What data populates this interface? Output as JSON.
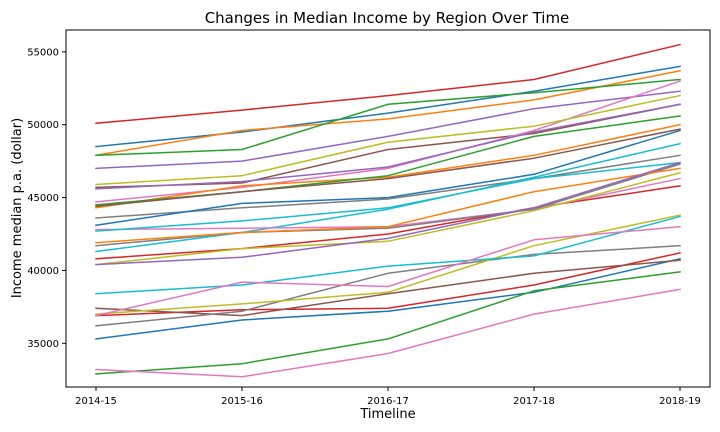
{
  "chart_data": {
    "type": "line",
    "title": "Changes in Median Income by Region Over Time",
    "xlabel": "Timeline",
    "ylabel": "Income median p.a. (dollar)",
    "categories": [
      "2014-15",
      "2015-16",
      "2016-17",
      "2017-18",
      "2018-19"
    ],
    "ylim": [
      32000,
      56500
    ],
    "yticks": [
      35000,
      40000,
      45000,
      50000,
      55000
    ],
    "ytick_labels": [
      "35000",
      "40000",
      "45000",
      "50000",
      "55000"
    ],
    "grid": false,
    "legend": "none",
    "series": [
      {
        "values": [
          48500,
          49500,
          50800,
          52300,
          54000
        ],
        "color": "#1f77b4"
      },
      {
        "values": [
          47900,
          49600,
          50400,
          51700,
          53700
        ],
        "color": "#ff7f0e"
      },
      {
        "values": [
          47900,
          48300,
          51400,
          52200,
          53100
        ],
        "color": "#2ca02c"
      },
      {
        "values": [
          50100,
          51000,
          52000,
          53100,
          55500
        ],
        "color": "#d62728"
      },
      {
        "values": [
          47000,
          47500,
          49200,
          51100,
          52300
        ],
        "color": "#9467bd"
      },
      {
        "values": [
          45700,
          46000,
          48300,
          49400,
          51400
        ],
        "color": "#8c564b"
      },
      {
        "values": [
          44700,
          45700,
          47000,
          49600,
          53000
        ],
        "color": "#e377c2"
      },
      {
        "values": [
          43600,
          44300,
          44900,
          46300,
          47900
        ],
        "color": "#7f7f7f"
      },
      {
        "values": [
          45900,
          46500,
          48800,
          49900,
          52000
        ],
        "color": "#bcbd22"
      },
      {
        "values": [
          41300,
          42600,
          44200,
          46400,
          48700
        ],
        "color": "#17becf"
      },
      {
        "values": [
          43100,
          44600,
          45000,
          46600,
          49600
        ],
        "color": "#1f77b4"
      },
      {
        "values": [
          44300,
          45800,
          46400,
          47900,
          50000
        ],
        "color": "#ff7f0e"
      },
      {
        "values": [
          44500,
          45400,
          46500,
          49200,
          50600
        ],
        "color": "#2ca02c"
      },
      {
        "values": [
          40800,
          41500,
          42500,
          44300,
          45800
        ],
        "color": "#d62728"
      },
      {
        "values": [
          45600,
          46100,
          47100,
          49500,
          51400
        ],
        "color": "#9467bd"
      },
      {
        "values": [
          44400,
          45400,
          46300,
          47700,
          49700
        ],
        "color": "#8c564b"
      },
      {
        "values": [
          42800,
          42900,
          43000,
          44200,
          46300
        ],
        "color": "#e377c2"
      },
      {
        "values": [
          41700,
          42600,
          42900,
          44200,
          47300
        ],
        "color": "#7f7f7f"
      },
      {
        "values": [
          40400,
          41500,
          42000,
          44100,
          46700
        ],
        "color": "#bcbd22"
      },
      {
        "values": [
          42700,
          43400,
          44300,
          46300,
          47400
        ],
        "color": "#17becf"
      },
      {
        "values": [
          35300,
          36600,
          37200,
          38500,
          40800
        ],
        "color": "#1f77b4"
      },
      {
        "values": [
          41900,
          42600,
          43000,
          45400,
          47000
        ],
        "color": "#ff7f0e"
      },
      {
        "values": [
          32900,
          33600,
          35300,
          38600,
          39900
        ],
        "color": "#2ca02c"
      },
      {
        "values": [
          36900,
          37300,
          37400,
          39000,
          41200
        ],
        "color": "#d62728"
      },
      {
        "values": [
          40400,
          40900,
          42200,
          44300,
          47400
        ],
        "color": "#9467bd"
      },
      {
        "values": [
          37400,
          36900,
          38400,
          39800,
          40700
        ],
        "color": "#8c564b"
      },
      {
        "values": [
          33200,
          32700,
          34300,
          37000,
          38700
        ],
        "color": "#e377c2"
      },
      {
        "values": [
          36200,
          37200,
          39800,
          41100,
          41700
        ],
        "color": "#7f7f7f"
      },
      {
        "values": [
          37000,
          37700,
          38500,
          41700,
          43800
        ],
        "color": "#bcbd22"
      },
      {
        "values": [
          38400,
          39000,
          40300,
          41000,
          43700
        ],
        "color": "#17becf"
      },
      {
        "values": [
          36900,
          39200,
          38900,
          42100,
          43000
        ],
        "color": "#e377c2"
      }
    ]
  }
}
